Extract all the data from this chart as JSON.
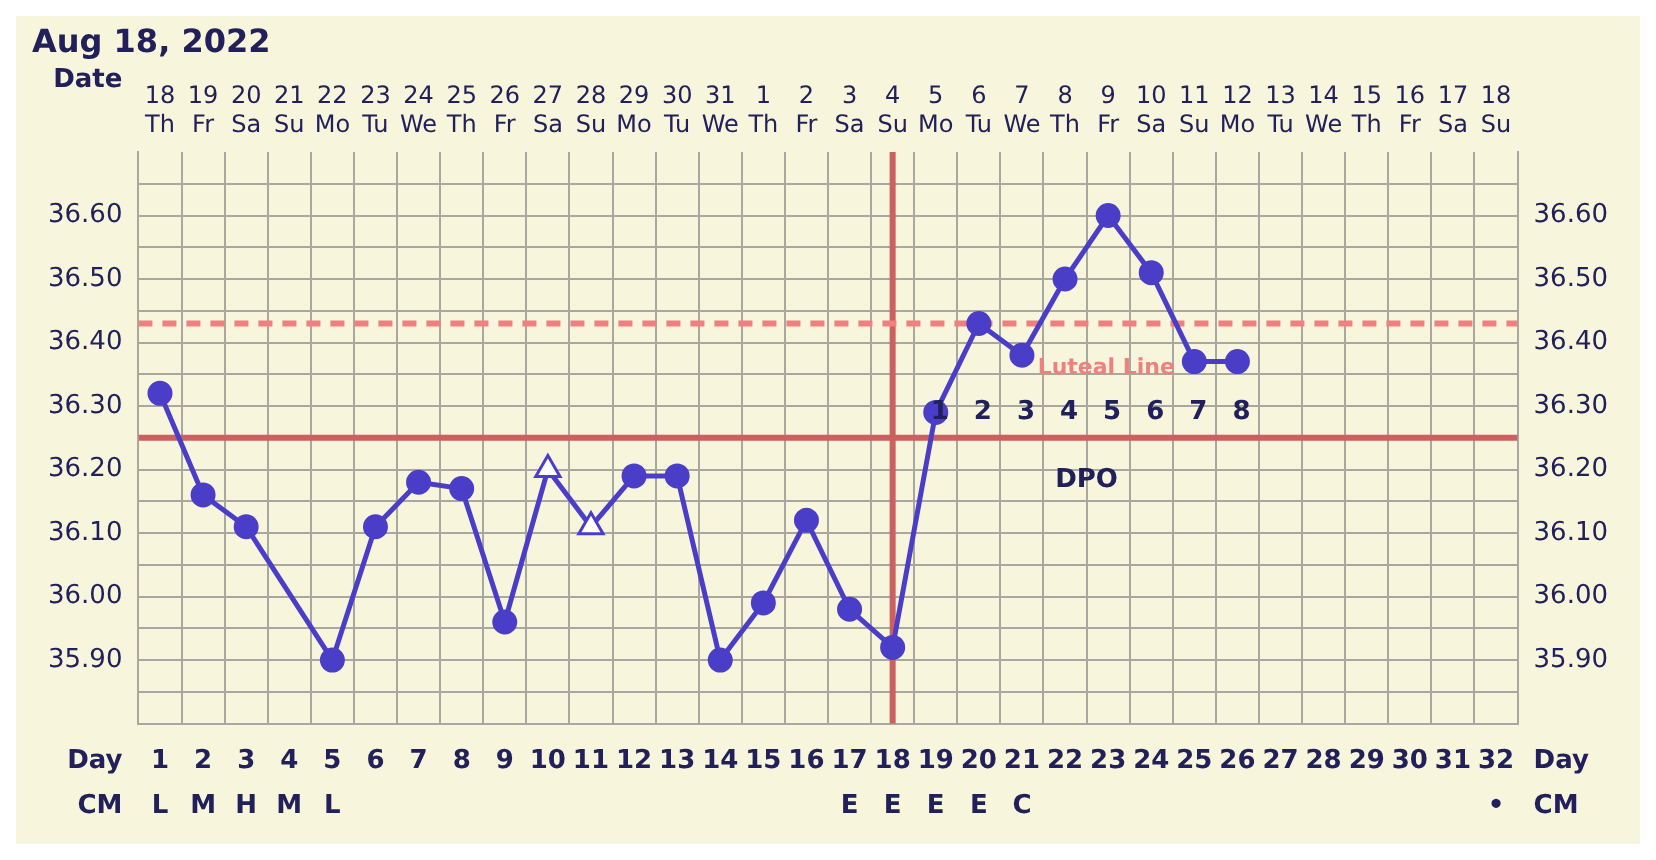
{
  "chart_data": {
    "type": "line",
    "title": "Aug 18, 2022",
    "x2label": "Date",
    "xlabel": "Day",
    "categories": [
      "1\nL",
      "2\nM",
      "3\nH",
      "4\nM",
      "5\nL",
      "6",
      "7",
      "8",
      "9",
      "10",
      "11",
      "12",
      "13",
      "14",
      "15",
      "16",
      "17\nE",
      "18\nE",
      "19\nE",
      "20\nE",
      "21\nC",
      "22",
      "23",
      "24",
      "25",
      "26",
      "27",
      "28",
      "29",
      "30",
      "31",
      "32\n•"
    ],
    "x2lim": [
      "2022-08-17T12:00",
      "2022-09-18T12:00"
    ],
    "x2ticks": [
      {
        "value": "2022-08-18",
        "label": "18\nTh"
      },
      {
        "value": "2022-08-19",
        "label": "19\nFr"
      },
      {
        "value": "2022-08-20",
        "label": "20\nSa"
      },
      {
        "value": "2022-08-21",
        "label": "21\nSu"
      },
      {
        "value": "2022-08-22",
        "label": "22\nMo"
      },
      {
        "value": "2022-08-23",
        "label": "23\nTu"
      },
      {
        "value": "2022-08-24",
        "label": "24\nWe"
      },
      {
        "value": "2022-08-25",
        "label": "25\nTh"
      },
      {
        "value": "2022-08-26",
        "label": "26\nFr"
      },
      {
        "value": "2022-08-27",
        "label": "27\nSa"
      },
      {
        "value": "2022-08-28",
        "label": "28\nSu"
      },
      {
        "value": "2022-08-29",
        "label": "29\nMo"
      },
      {
        "value": "2022-08-30",
        "label": "30\nTu"
      },
      {
        "value": "2022-08-31",
        "label": "31\nWe"
      },
      {
        "value": "2022-09-01",
        "label": "1\nTh"
      },
      {
        "value": "2022-09-02",
        "label": "2\nFr"
      },
      {
        "value": "2022-09-03",
        "label": "3\nSa"
      },
      {
        "value": "2022-09-04",
        "label": "4\nSu"
      },
      {
        "value": "2022-09-05",
        "label": "5\nMo"
      },
      {
        "value": "2022-09-06",
        "label": "6\nTu"
      },
      {
        "value": "2022-09-07",
        "label": "7\nWe"
      },
      {
        "value": "2022-09-08",
        "label": "8\nTh"
      },
      {
        "value": "2022-09-09",
        "label": "9\nFr"
      },
      {
        "value": "2022-09-10",
        "label": "10\nSa"
      },
      {
        "value": "2022-09-11",
        "label": "11\nSu"
      },
      {
        "value": "2022-09-12",
        "label": "12\nMo"
      },
      {
        "value": "2022-09-13",
        "label": "13\nTu"
      },
      {
        "value": "2022-09-14",
        "label": "14\nWe"
      },
      {
        "value": "2022-09-15",
        "label": "15\nTh"
      },
      {
        "value": "2022-09-16",
        "label": "16\nFr"
      },
      {
        "value": "2022-09-17",
        "label": "17\nSa"
      },
      {
        "value": "2022-09-18",
        "label": "18\nSu"
      }
    ],
    "ylim": [
      35.8,
      36.7
    ],
    "yticks": [
      {
        "value": 35.85,
        "label": null
      },
      {
        "value": 35.9,
        "label": "35.90"
      },
      {
        "value": 35.95,
        "label": null
      },
      {
        "value": 36.0,
        "label": "36.00"
      },
      {
        "value": 36.05,
        "label": null
      },
      {
        "value": 36.1,
        "label": "36.10"
      },
      {
        "value": 36.15,
        "label": null
      },
      {
        "value": 36.2,
        "label": "36.20"
      },
      {
        "value": 36.3,
        "label": "36.30"
      },
      {
        "value": 36.35,
        "label": null
      },
      {
        "value": 36.4,
        "label": "36.40"
      },
      {
        "value": 36.45,
        "label": null
      },
      {
        "value": 36.5,
        "label": "36.50"
      },
      {
        "value": 36.55,
        "label": null
      },
      {
        "value": 36.6,
        "label": "36.60"
      },
      {
        "value": 36.65,
        "label": null
      }
    ],
    "y2lim": [
      35.8,
      36.7
    ],
    "y2ticks": [
      {
        "value": 35.9,
        "label": "35.90"
      },
      {
        "value": 36.0,
        "label": "36.00"
      },
      {
        "value": 36.1,
        "label": "36.10"
      },
      {
        "value": 36.2,
        "label": "36.20"
      },
      {
        "value": 36.3,
        "label": "36.30"
      },
      {
        "value": 36.4,
        "label": "36.40"
      },
      {
        "value": 36.5,
        "label": "36.50"
      },
      {
        "value": 36.6,
        "label": "36.60"
      }
    ],
    "series": [
      {
        "type": "line",
        "color": "#4a3ec8",
        "marker": "circle",
        "values": [
          36.32,
          36.16,
          36.11,
          null,
          35.9,
          36.11,
          36.18,
          36.17,
          35.96,
          36.2,
          36.11,
          36.19,
          36.19,
          35.9,
          35.99,
          36.12,
          35.98,
          35.92,
          36.29,
          36.43,
          36.38,
          36.5,
          36.6,
          36.51,
          36.37,
          36.37,
          null,
          null,
          null,
          null,
          null,
          null
        ]
      },
      {
        "type": "scatter",
        "color": "#4a3ec8",
        "marker": "triangle",
        "x": [
          "10",
          "11"
        ],
        "values": [
          36.2,
          36.11
        ]
      }
    ],
    "ref_lines": [
      {
        "axis": "y",
        "value": 36.25,
        "color": "#cc6060"
      },
      {
        "axis": "x",
        "value": "18\nE",
        "color": "#cc6060"
      },
      {
        "axis": "y",
        "value": 36.43,
        "label": "Luteal Line",
        "color": "#f08080",
        "line_style": "dashed"
      }
    ],
    "annotations": [
      "CM",
      "DPO",
      "1",
      "2",
      "3",
      "4",
      "5",
      "6",
      "7",
      "8"
    ],
    "grid": true,
    "legend": false
  }
}
